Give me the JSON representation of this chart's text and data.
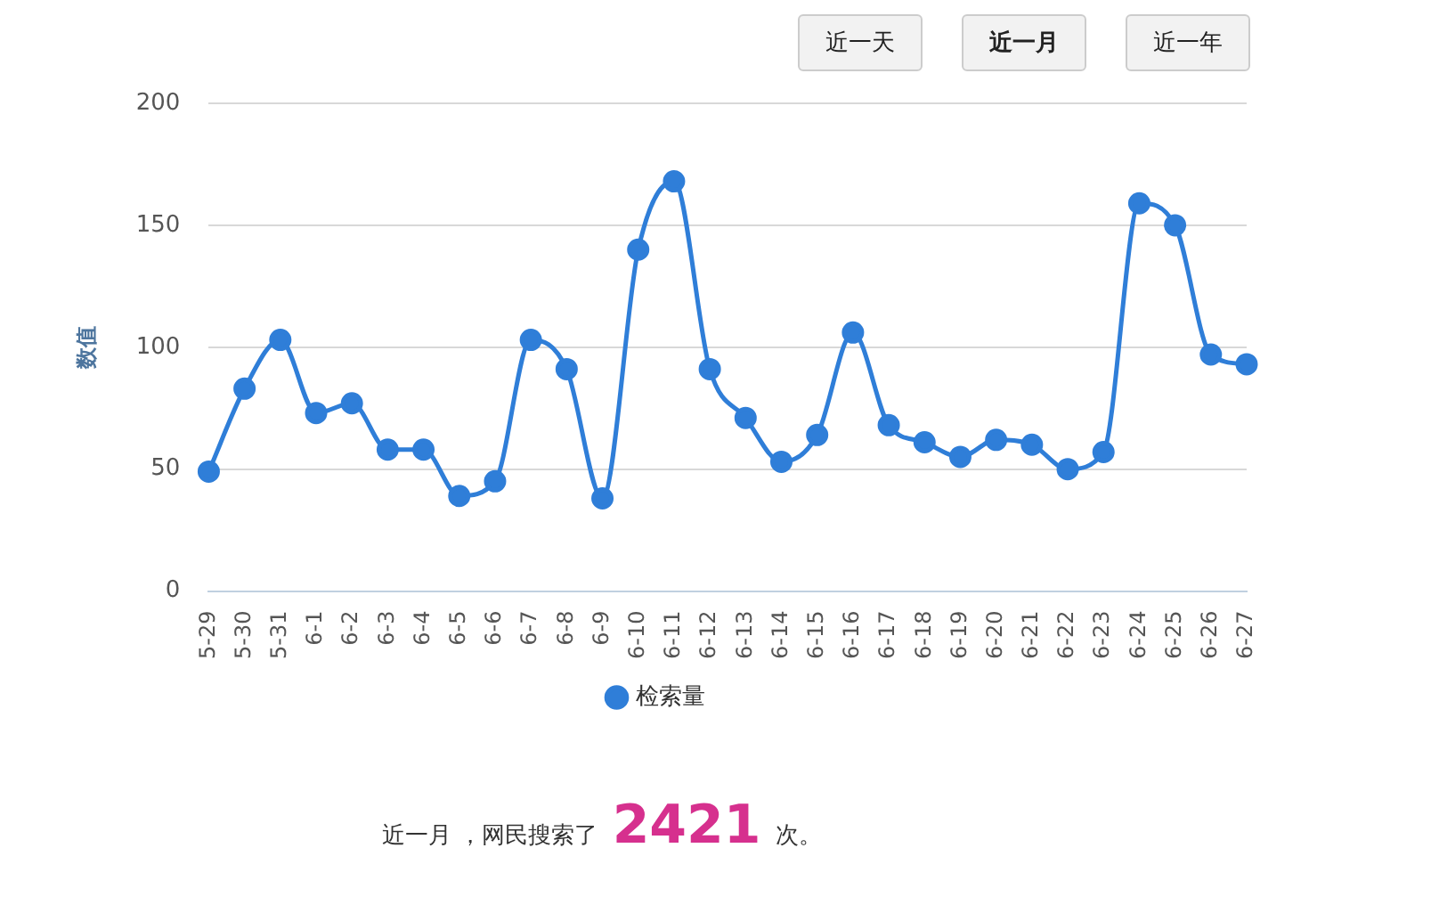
{
  "chart_data": {
    "type": "line",
    "ylabel": "数值",
    "categories": [
      "5-29",
      "5-30",
      "5-31",
      "6-1",
      "6-2",
      "6-3",
      "6-4",
      "6-5",
      "6-6",
      "6-7",
      "6-8",
      "6-9",
      "6-10",
      "6-11",
      "6-12",
      "6-13",
      "6-14",
      "6-15",
      "6-16",
      "6-17",
      "6-18",
      "6-19",
      "6-20",
      "6-21",
      "6-22",
      "6-23",
      "6-24",
      "6-25",
      "6-26",
      "6-27"
    ],
    "series": [
      {
        "name": "检索量",
        "color": "#2f7ed8",
        "values": [
          49,
          83,
          103,
          73,
          77,
          58,
          58,
          39,
          45,
          103,
          91,
          38,
          140,
          168,
          91,
          71,
          53,
          64,
          106,
          68,
          61,
          55,
          62,
          60,
          50,
          57,
          159,
          150,
          97,
          93
        ]
      }
    ],
    "ylim": [
      0,
      200
    ],
    "yticks": [
      0,
      50,
      100,
      150,
      200
    ],
    "grid": "y",
    "legend": "bottom",
    "marker": "circle",
    "line_style": "solid",
    "annotations": [
      "近一天",
      "近一月",
      "近一年",
      "近一月 ，网民搜索了 2421 次。"
    ]
  }
}
